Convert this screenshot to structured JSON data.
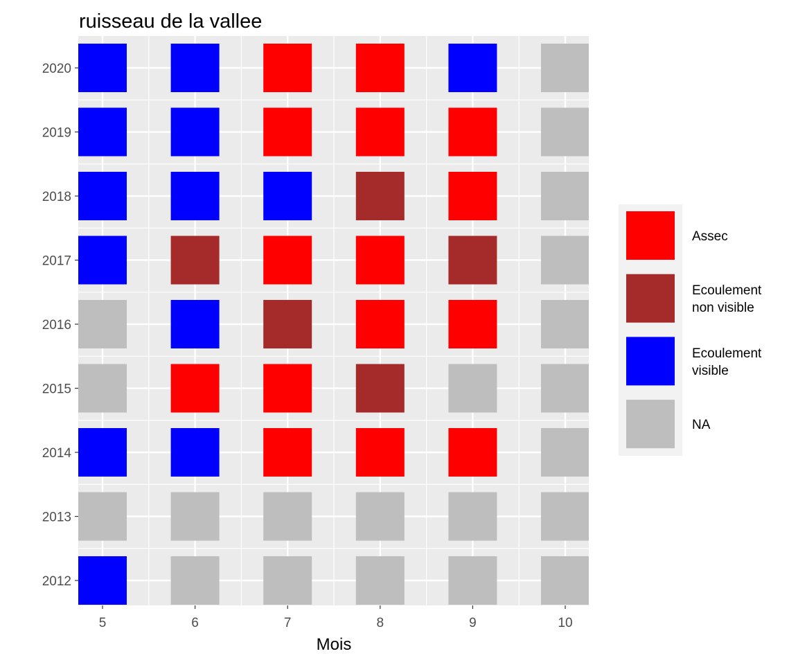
{
  "chart_data": {
    "type": "heatmap",
    "title": "ruisseau de la vallee",
    "xlabel": "Mois",
    "ylabel": "",
    "x": [
      5,
      6,
      7,
      8,
      9,
      10
    ],
    "y": [
      2012,
      2013,
      2014,
      2015,
      2016,
      2017,
      2018,
      2019,
      2020
    ],
    "categories": [
      {
        "key": "Assec",
        "label_lines": [
          "Assec"
        ],
        "color": "#ff0000"
      },
      {
        "key": "Ecoulement non visible",
        "label_lines": [
          "Ecoulement",
          "non visible"
        ],
        "color": "#a52a2a"
      },
      {
        "key": "Ecoulement visible",
        "label_lines": [
          "Ecoulement",
          "visible"
        ],
        "color": "#0000ff"
      },
      {
        "key": "NA",
        "label_lines": [
          "NA"
        ],
        "color": "#bebebe"
      }
    ],
    "values": [
      {
        "year": 2020,
        "months": [
          "Ecoulement visible",
          "Ecoulement visible",
          "Assec",
          "Assec",
          "Ecoulement visible",
          "NA"
        ]
      },
      {
        "year": 2019,
        "months": [
          "Ecoulement visible",
          "Ecoulement visible",
          "Assec",
          "Assec",
          "Assec",
          "NA"
        ]
      },
      {
        "year": 2018,
        "months": [
          "Ecoulement visible",
          "Ecoulement visible",
          "Ecoulement visible",
          "Ecoulement non visible",
          "Assec",
          "NA"
        ]
      },
      {
        "year": 2017,
        "months": [
          "Ecoulement visible",
          "Ecoulement non visible",
          "Assec",
          "Assec",
          "Ecoulement non visible",
          "NA"
        ]
      },
      {
        "year": 2016,
        "months": [
          "NA",
          "Ecoulement visible",
          "Ecoulement non visible",
          "Assec",
          "Assec",
          "NA"
        ]
      },
      {
        "year": 2015,
        "months": [
          "NA",
          "Assec",
          "Assec",
          "Ecoulement non visible",
          "NA",
          "NA"
        ]
      },
      {
        "year": 2014,
        "months": [
          "Ecoulement visible",
          "Ecoulement visible",
          "Assec",
          "Assec",
          "Assec",
          "NA"
        ]
      },
      {
        "year": 2013,
        "months": [
          "NA",
          "NA",
          "NA",
          "NA",
          "NA",
          "NA"
        ]
      },
      {
        "year": 2012,
        "months": [
          "Ecoulement visible",
          "NA",
          "NA",
          "NA",
          "NA",
          "NA"
        ]
      }
    ],
    "grid": true,
    "legend_position": "right",
    "panel_background": "#ebebeb",
    "legend_background": "#f2f2f2"
  }
}
